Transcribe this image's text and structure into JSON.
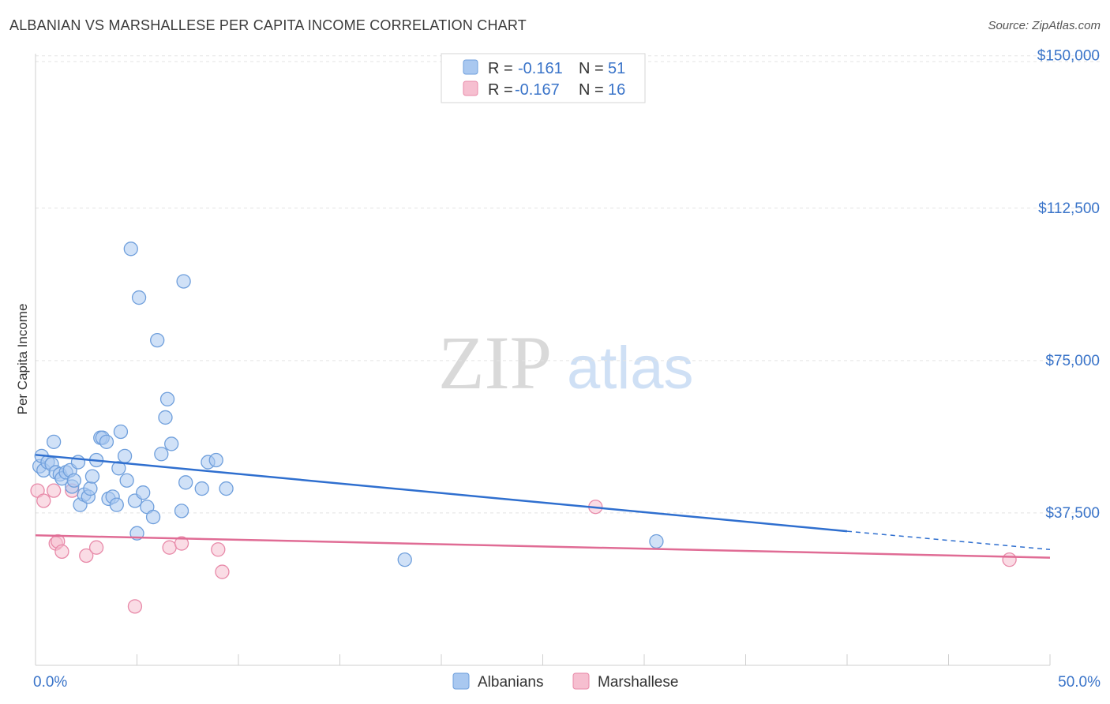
{
  "title": "ALBANIAN VS MARSHALLESE PER CAPITA INCOME CORRELATION CHART",
  "source": "Source: ZipAtlas.com",
  "watermark": {
    "zip": "ZIP",
    "atlas": "atlas"
  },
  "legend": {
    "r_label": "R =",
    "n_label": "N =",
    "albanians": {
      "r": "-0.161",
      "n": "51"
    },
    "marshallese": {
      "r": "-0.167",
      "n": "16"
    }
  },
  "colors": {
    "albanians_fill": "#a9c8f0",
    "albanians_stroke": "#6f9fdc",
    "albanians_line": "#2f6fcf",
    "marshallese_fill": "#f6bfd0",
    "marshallese_stroke": "#e88aa9",
    "marshallese_line": "#e06c95",
    "tick_text": "#3a74c9",
    "grid": "#e3e3e3"
  },
  "chart_data": {
    "type": "scatter",
    "xlabel": "",
    "ylabel": "Per Capita Income",
    "xlim": [
      0,
      50
    ],
    "ylim": [
      0,
      155000
    ],
    "x_tick_labels": [
      "0.0%",
      "50.0%"
    ],
    "y_ticks": [
      37500,
      75000,
      112500,
      150000
    ],
    "y_tick_labels": [
      "$37,500",
      "$75,000",
      "$112,500",
      "$150,000"
    ],
    "grid": true,
    "legend_position": "top-center",
    "series": [
      {
        "name": "Albanians",
        "trend": {
          "x": [
            0,
            40
          ],
          "y": [
            51800,
            33000
          ],
          "dashed_to": [
            50,
            28500
          ]
        },
        "points": [
          [
            0.2,
            49000
          ],
          [
            0.3,
            51500
          ],
          [
            0.4,
            48000
          ],
          [
            0.6,
            50000
          ],
          [
            0.8,
            49500
          ],
          [
            0.9,
            55000
          ],
          [
            1.0,
            47500
          ],
          [
            1.2,
            47000
          ],
          [
            1.3,
            46000
          ],
          [
            1.5,
            47500
          ],
          [
            1.7,
            48000
          ],
          [
            1.8,
            44000
          ],
          [
            1.9,
            45500
          ],
          [
            2.1,
            50000
          ],
          [
            2.2,
            39500
          ],
          [
            2.4,
            42000
          ],
          [
            2.6,
            41500
          ],
          [
            2.7,
            43500
          ],
          [
            2.8,
            46500
          ],
          [
            3.0,
            50500
          ],
          [
            3.2,
            56000
          ],
          [
            3.3,
            56000
          ],
          [
            3.5,
            55000
          ],
          [
            3.6,
            41000
          ],
          [
            3.8,
            41500
          ],
          [
            4.0,
            39500
          ],
          [
            4.1,
            48500
          ],
          [
            4.2,
            57500
          ],
          [
            4.4,
            51500
          ],
          [
            4.5,
            45500
          ],
          [
            4.7,
            102500
          ],
          [
            4.9,
            40500
          ],
          [
            5.0,
            32500
          ],
          [
            5.1,
            90500
          ],
          [
            5.3,
            42500
          ],
          [
            5.5,
            39000
          ],
          [
            5.8,
            36500
          ],
          [
            6.0,
            80000
          ],
          [
            6.2,
            52000
          ],
          [
            6.4,
            61000
          ],
          [
            6.5,
            65500
          ],
          [
            6.7,
            54500
          ],
          [
            7.2,
            38000
          ],
          [
            7.3,
            94500
          ],
          [
            7.4,
            45000
          ],
          [
            8.2,
            43500
          ],
          [
            8.5,
            50000
          ],
          [
            8.9,
            50500
          ],
          [
            9.4,
            43500
          ],
          [
            18.2,
            26000
          ],
          [
            30.6,
            30500
          ]
        ]
      },
      {
        "name": "Marshallese",
        "trend": {
          "x": [
            0,
            50
          ],
          "y": [
            32000,
            26500
          ]
        },
        "points": [
          [
            0.1,
            43000
          ],
          [
            0.4,
            40500
          ],
          [
            0.9,
            43000
          ],
          [
            1.0,
            30000
          ],
          [
            1.1,
            30500
          ],
          [
            1.3,
            28000
          ],
          [
            1.8,
            43000
          ],
          [
            2.5,
            27000
          ],
          [
            3.0,
            29000
          ],
          [
            4.9,
            14500
          ],
          [
            6.6,
            29000
          ],
          [
            7.2,
            30000
          ],
          [
            9.0,
            28500
          ],
          [
            9.2,
            23000
          ],
          [
            27.6,
            39000
          ],
          [
            48.0,
            26000
          ]
        ]
      }
    ]
  }
}
